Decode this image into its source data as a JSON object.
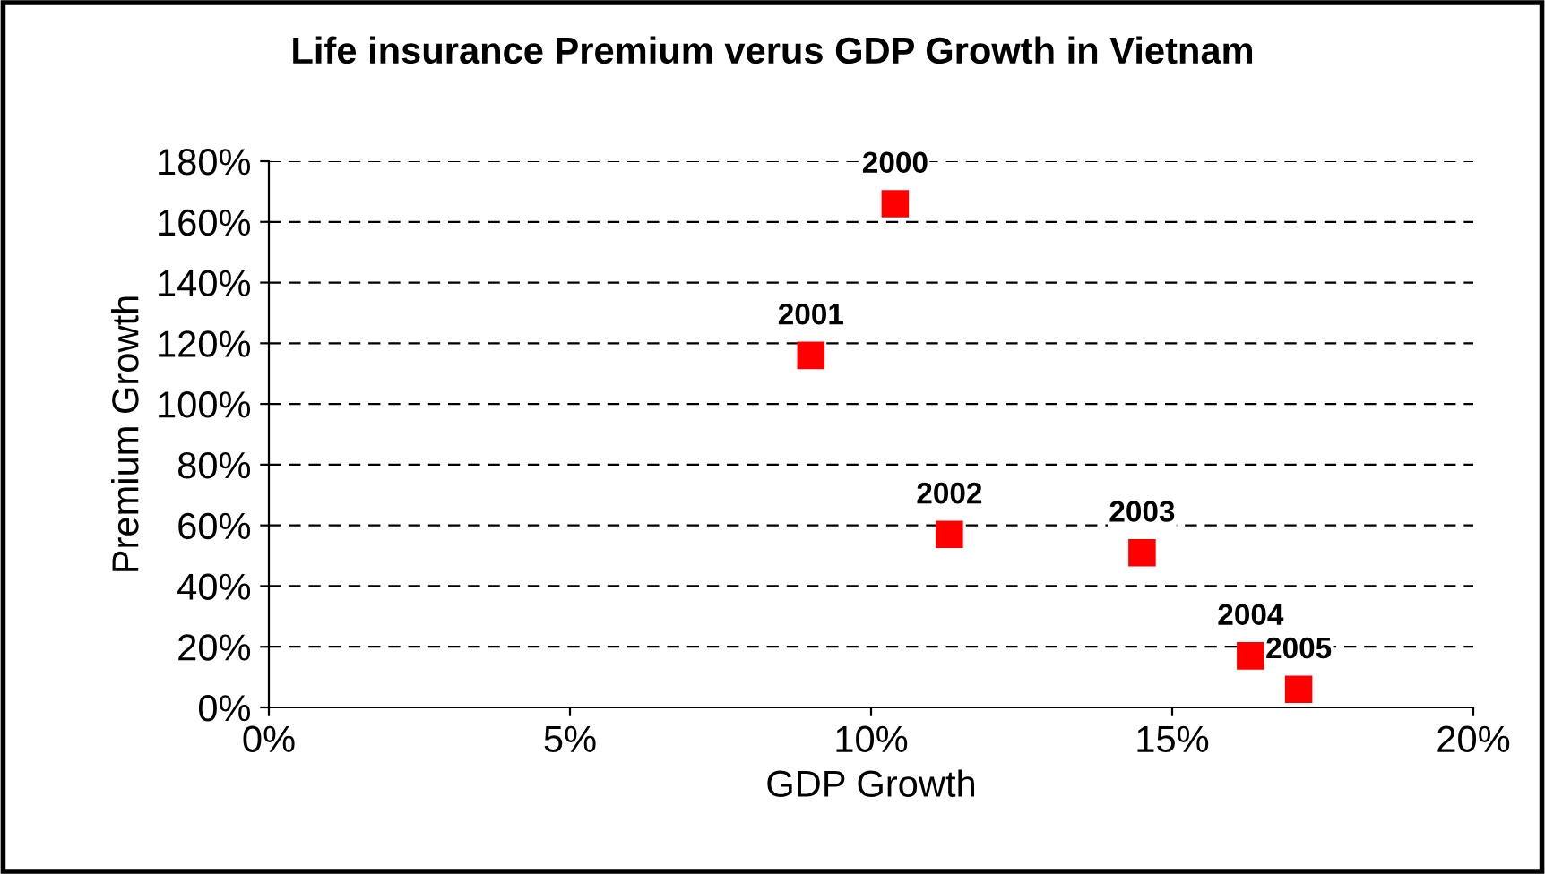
{
  "chart_data": {
    "type": "scatter",
    "title": "Life insurance Premium verus GDP Growth in Vietnam",
    "xlabel": "GDP Growth",
    "ylabel": "Premium Growth",
    "x": [
      10.4,
      9.0,
      11.3,
      14.5,
      16.3,
      17.1
    ],
    "values": [
      166,
      116,
      57,
      51,
      17,
      6
    ],
    "color": "#ff0000",
    "marker": "square",
    "grid": "y",
    "legend": false,
    "xlim": [
      0,
      20
    ],
    "xticks": [
      {
        "value": 0,
        "label": "0%"
      },
      {
        "value": 5,
        "label": "5%"
      },
      {
        "value": 10,
        "label": "10%"
      },
      {
        "value": 15,
        "label": "15%"
      },
      {
        "value": 20,
        "label": "20%"
      }
    ],
    "ylim": [
      0,
      180
    ],
    "yticks": [
      {
        "value": 0,
        "label": "0%"
      },
      {
        "value": 20,
        "label": "20%"
      },
      {
        "value": 40,
        "label": "40%"
      },
      {
        "value": 60,
        "label": "60%"
      },
      {
        "value": 80,
        "label": "80%"
      },
      {
        "value": 100,
        "label": "100%"
      },
      {
        "value": 120,
        "label": "120%"
      },
      {
        "value": 140,
        "label": "140%"
      },
      {
        "value": 160,
        "label": "160%"
      },
      {
        "value": 180,
        "label": "180%"
      }
    ],
    "annotations": [
      {
        "text": "2000",
        "x": 10.4,
        "y": 166
      },
      {
        "text": "2001",
        "x": 9.0,
        "y": 116
      },
      {
        "text": "2002",
        "x": 11.3,
        "y": 57
      },
      {
        "text": "2003",
        "x": 14.5,
        "y": 51
      },
      {
        "text": "2004",
        "x": 16.3,
        "y": 17
      },
      {
        "text": "2005",
        "x": 17.1,
        "y": 6
      }
    ]
  }
}
